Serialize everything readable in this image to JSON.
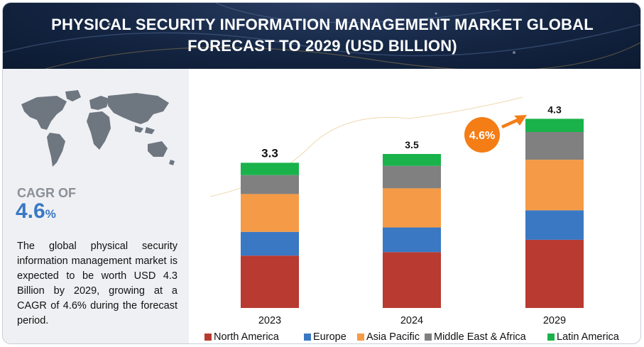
{
  "title": "PHYSICAL SECURITY INFORMATION MANAGEMENT MARKET GLOBAL FORECAST TO 2029 (USD BILLION)",
  "cagr": {
    "label": "CAGR OF",
    "value": "4.6",
    "unit": "%"
  },
  "description": "The global physical security information management market is expected to be worth USD 4.3 Billion by 2029, growing at a CAGR of 4.6% during the forecast period.",
  "colors": {
    "header_bg": "#142542",
    "north_america": "#b83a31",
    "europe": "#3a78c4",
    "asia_pacific": "#f59a46",
    "middle_east_africa": "#808080",
    "latin_america": "#19b24b",
    "badge": "#f47d16"
  },
  "chart_data": {
    "type": "bar",
    "stacked": true,
    "categories": [
      "2023",
      "2024",
      "2029"
    ],
    "totals": [
      "3.3",
      "3.5",
      "4.3"
    ],
    "cagr_badge": "4.6%",
    "ylim": [
      0,
      5
    ],
    "grid": false,
    "legend_position": "bottom",
    "series": [
      {
        "name": "North America",
        "color": "#b83a31",
        "values": [
          1.19,
          1.27,
          1.55
        ]
      },
      {
        "name": "Europe",
        "color": "#3a78c4",
        "values": [
          0.54,
          0.56,
          0.67
        ]
      },
      {
        "name": "Asia Pacific",
        "color": "#f59a46",
        "values": [
          0.86,
          0.89,
          1.15
        ]
      },
      {
        "name": "Middle East & Africa",
        "color": "#808080",
        "values": [
          0.43,
          0.51,
          0.63
        ]
      },
      {
        "name": "Latin America",
        "color": "#19b24b",
        "values": [
          0.28,
          0.27,
          0.3
        ]
      }
    ]
  }
}
